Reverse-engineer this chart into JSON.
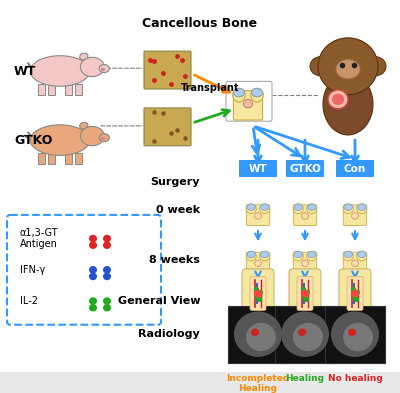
{
  "title": "Cancellous Bone",
  "bg_color": "#e8e8e8",
  "bg_rounded": true,
  "outer_border_color": "#aaaaaa",
  "wt_label": "WT",
  "gtko_label": "GTKO",
  "surgery_label": "Surgery",
  "week0_label": "0 week",
  "week8_label": "8 weeks",
  "general_view_label": "General View",
  "radiology_label": "Radiology",
  "col_labels": [
    "WT",
    "GTKO",
    "Con"
  ],
  "col_label_bg": "#3399ff",
  "col_label_color": "white",
  "legend_items": [
    {
      "label": "α1,3-GT\nAntigen",
      "color": "#dd2222",
      "dots": 4
    },
    {
      "label": "IFN-γ",
      "color": "#2255cc",
      "dots": 4
    },
    {
      "label": "IL-2",
      "color": "#22aa22",
      "dots": 4
    }
  ],
  "legend_border_color": "#3399ff",
  "outcome_labels": [
    "Incompleted\nHealing",
    "Healing",
    "No healing"
  ],
  "outcome_colors": [
    "#ff8800",
    "#22aa22",
    "#dd2222"
  ],
  "transplant_arrow_color": "#ff8800",
  "transplant_arrow2_color": "#22aa22",
  "blue_arrow_color": "#3399ff",
  "down_arrow_color": "#3399ff",
  "pig_wt_color": "#f5c8c8",
  "pig_gtko_color": "#e8a87c",
  "bone_top_color": "#f5e6a0",
  "bone_blue_color": "#aaccee"
}
